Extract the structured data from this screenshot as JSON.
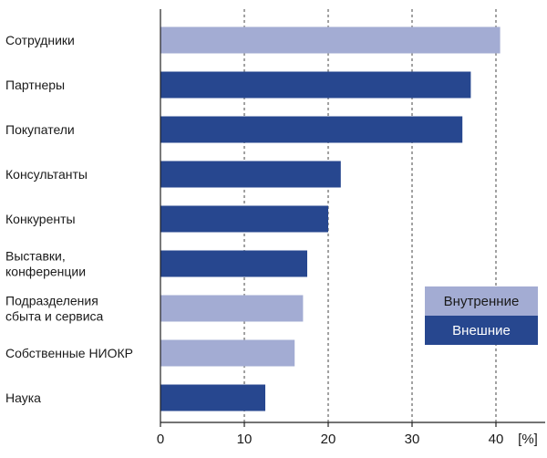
{
  "chart_data": {
    "type": "bar",
    "orientation": "horizontal",
    "categories": [
      [
        "Сотрудники"
      ],
      [
        "Партнеры"
      ],
      [
        "Покупатели"
      ],
      [
        "Консультанты"
      ],
      [
        "Конкуренты"
      ],
      [
        "Выставки,",
        "конференции"
      ],
      [
        "Подразделения",
        "сбыта и сервиса"
      ],
      [
        "Собственные НИОКР"
      ],
      [
        "Наука"
      ]
    ],
    "values": [
      40.5,
      37,
      36,
      21.5,
      20,
      17.5,
      17,
      16,
      12.5
    ],
    "groups": [
      "internal",
      "external",
      "external",
      "external",
      "external",
      "external",
      "internal",
      "internal",
      "external"
    ],
    "xlim": [
      0,
      42
    ],
    "xticks": [
      0,
      10,
      20,
      30,
      40
    ],
    "xticks_labels": [
      "0",
      "10",
      "20",
      "30",
      "40"
    ],
    "xunit": "[%]",
    "grid": "vertical dashed at 10, 20, 30, 40",
    "legend": {
      "placement": "bottom-right",
      "entries": [
        {
          "key": "internal",
          "label": "Внутренние"
        },
        {
          "key": "external",
          "label": "Внешние"
        }
      ]
    },
    "colors": {
      "internal": "#a3acd3",
      "external": "#27478f",
      "internal_text": "#1a1a1a",
      "external_text": "#ffffff",
      "grid": "#444444",
      "axis": "#222222"
    }
  }
}
